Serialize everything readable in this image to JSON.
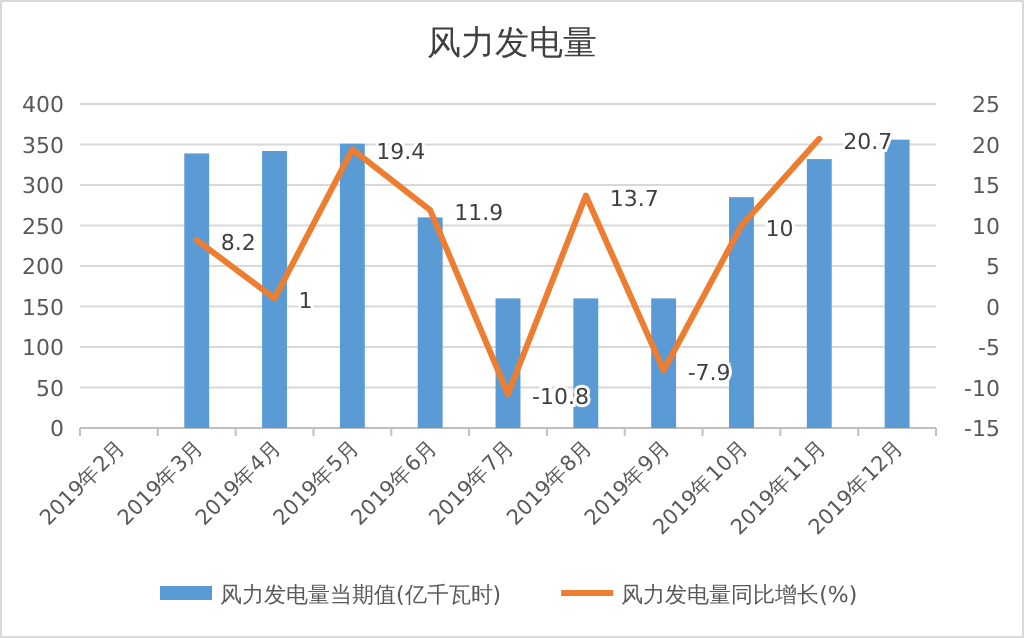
{
  "chart_data": {
    "type": "bar",
    "title": "风力发电量",
    "categories": [
      "2019年2月",
      "2019年3月",
      "2019年4月",
      "2019年5月",
      "2019年6月",
      "2019年7月",
      "2019年8月",
      "2019年9月",
      "2019年10月",
      "2019年11月",
      "2019年12月"
    ],
    "series": [
      {
        "name": "风力发电量当期值(亿千瓦时)",
        "color": "#5b9bd5",
        "values": [
          null,
          339,
          342,
          351,
          260,
          160,
          160,
          160,
          285,
          332,
          356
        ]
      },
      {
        "name": "风力发电量同比增长(%)",
        "type": "line",
        "axis": "y2",
        "color": "#ed7d31",
        "values": [
          null,
          8.2,
          1,
          19.4,
          11.9,
          -10.8,
          13.7,
          -7.9,
          10,
          20.7,
          null
        ],
        "value_labels": [
          null,
          "8.2",
          "1",
          "19.4",
          "11.9",
          "-10.8",
          "13.7",
          "-7.9",
          "10",
          "20.7",
          null
        ]
      }
    ],
    "ylim": [
      0,
      400
    ],
    "yticks": [
      0,
      50,
      100,
      150,
      200,
      250,
      300,
      350,
      400
    ],
    "y2lim": [
      -15,
      25
    ],
    "y2ticks": [
      -15,
      -10,
      -5,
      0,
      5,
      10,
      15,
      20,
      25
    ],
    "grid": "y",
    "legend": "bottom"
  }
}
